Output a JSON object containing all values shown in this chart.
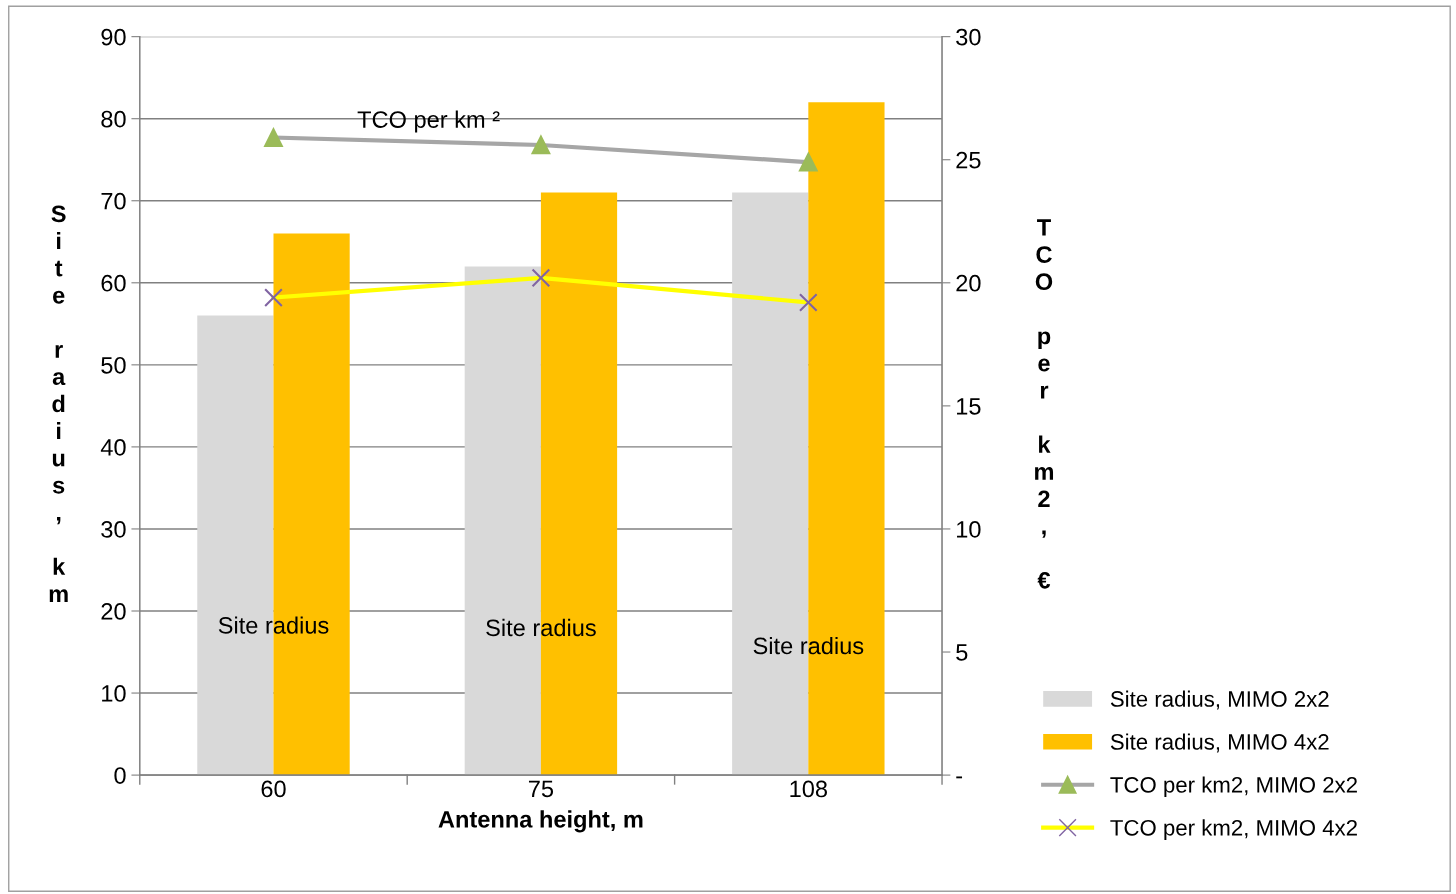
{
  "chart_data": {
    "type": "bar",
    "xlabel": "Antenna height, m",
    "ylabel": "Site radius, km",
    "y2label": "TCO per km2, €",
    "categories": [
      "60",
      "75",
      "108"
    ],
    "series": [
      {
        "name": "Site radius, MIMO 2x2",
        "color": "#d9d9d9",
        "values": [
          56,
          62,
          71
        ]
      },
      {
        "name": "Site radius, MIMO 4x2",
        "color": "#ffc000",
        "values": [
          66,
          71,
          82
        ]
      },
      {
        "name": "TCO per km2, MIMO 2x2",
        "type": "line",
        "axis": "y2",
        "color": "#a6a6a6",
        "colors": [
          "#9bbb59",
          "#9bbb59",
          "#9bbb59"
        ],
        "marker": "triangle",
        "values": [
          25.9,
          25.6,
          24.9
        ]
      },
      {
        "name": "TCO per km2, MIMO 4x2",
        "type": "line",
        "axis": "y2",
        "color": "#ffff00",
        "colors": [
          "#8064a2",
          "#8064a2",
          "#8064a2"
        ],
        "marker": "cross",
        "values": [
          19.4,
          20.2,
          19.2
        ]
      }
    ],
    "ylim": [
      0,
      90
    ],
    "yticks": [
      0,
      10,
      20,
      30,
      40,
      50,
      60,
      70,
      80,
      90
    ],
    "y2lim": [
      0,
      30
    ],
    "y2ticks": [
      {
        "value": 0,
        "label": "-"
      },
      5,
      10,
      15,
      20,
      25,
      30
    ],
    "grid": "y",
    "legend": "bottom right",
    "annotations": [
      "TCO per km ²",
      {
        "text": "Site radius",
        "x": "60",
        "y": 18
      },
      {
        "text": "Site radius",
        "x": "75",
        "y": 17.7
      },
      {
        "text": "Site radius",
        "x": "108",
        "y": 15.5
      }
    ]
  }
}
